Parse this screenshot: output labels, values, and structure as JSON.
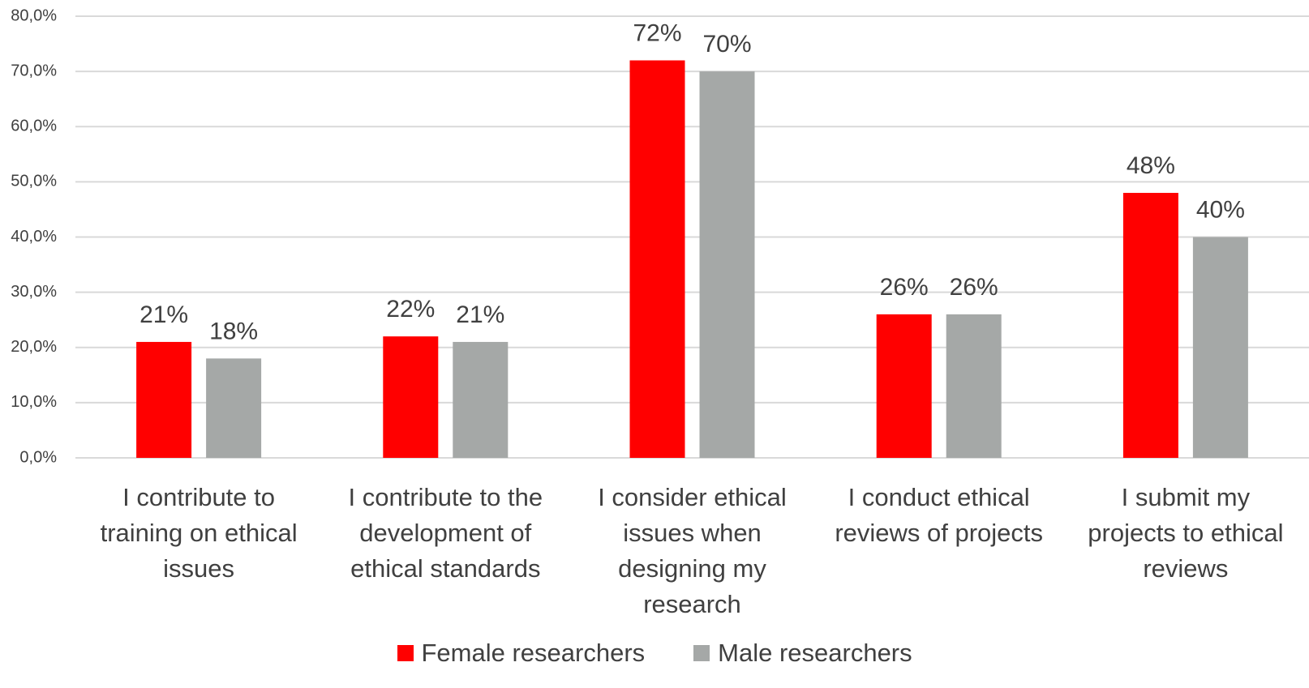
{
  "chart_data": {
    "type": "bar",
    "categories": [
      "I contribute to training on ethical issues",
      "I contribute to the development of ethical standards",
      "I consider ethical issues when designing my research",
      "I conduct ethical reviews of projects",
      "I submit my projects to ethical reviews"
    ],
    "series": [
      {
        "name": "Female researchers",
        "color": "#ff0000",
        "values": [
          21,
          22,
          72,
          26,
          48
        ],
        "value_labels": [
          "21%",
          "22%",
          "72%",
          "26%",
          "48%"
        ]
      },
      {
        "name": "Male researchers",
        "color": "#a5a8a7",
        "values": [
          18,
          21,
          70,
          26,
          40
        ],
        "value_labels": [
          "18%",
          "21%",
          "70%",
          "26%",
          "40%"
        ]
      }
    ],
    "ylim": [
      0,
      80
    ],
    "yticks": [
      {
        "value": 0,
        "label": "0,0%"
      },
      {
        "value": 10,
        "label": "10,0%"
      },
      {
        "value": 20,
        "label": "20,0%"
      },
      {
        "value": 30,
        "label": "30,0%"
      },
      {
        "value": 40,
        "label": "40,0%"
      },
      {
        "value": 50,
        "label": "50,0%"
      },
      {
        "value": 60,
        "label": "60,0%"
      },
      {
        "value": 70,
        "label": "70,0%"
      },
      {
        "value": 80,
        "label": "80,0%"
      }
    ],
    "grid": true,
    "legend": "bottom"
  }
}
